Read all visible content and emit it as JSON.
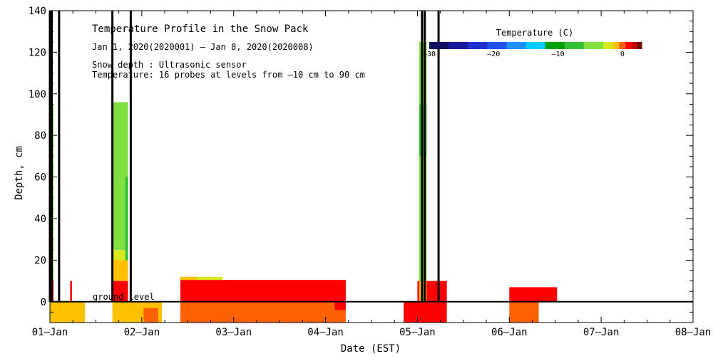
{
  "chart_data": {
    "type": "heatmap",
    "title": "Temperature Profile in the Snow Pack",
    "date_range_text": "Jan  1, 2020(2020001) – Jan  8, 2020(2020008)",
    "sensor_text": "Snow depth : Ultrasonic sensor",
    "probe_text": "Temperature: 16 probes at levels from –10 cm to 90 cm",
    "xlabel": "Date (EST)",
    "ylabel": "Depth, cm",
    "xlim": [
      0,
      7
    ],
    "ylim": [
      -10,
      140
    ],
    "x_ticks": [
      {
        "value": 0,
        "label": "01–Jan"
      },
      {
        "value": 1,
        "label": "02–Jan"
      },
      {
        "value": 2,
        "label": "03–Jan"
      },
      {
        "value": 3,
        "label": "04–Jan"
      },
      {
        "value": 4,
        "label": "05–Jan"
      },
      {
        "value": 5,
        "label": "06–Jan"
      },
      {
        "value": 6,
        "label": "07–Jan"
      },
      {
        "value": 7,
        "label": "08–Jan"
      }
    ],
    "y_ticks": [
      0,
      20,
      40,
      60,
      80,
      100,
      120,
      140
    ],
    "ground_level_label": "ground level",
    "colorbar": {
      "title": "Temperature (C)",
      "range": [
        -30,
        3
      ],
      "tick_labels": [
        {
          "value": -30,
          "label": "–30"
        },
        {
          "value": -20,
          "label": "–20"
        },
        {
          "value": -10,
          "label": "–10"
        },
        {
          "value": 0,
          "label": "0"
        }
      ],
      "bins": [
        {
          "from": -30,
          "to": -27,
          "color": "#101060"
        },
        {
          "from": -27,
          "to": -24,
          "color": "#1a1a9a"
        },
        {
          "from": -24,
          "to": -21,
          "color": "#2030d0"
        },
        {
          "from": -21,
          "to": -18,
          "color": "#2050f0"
        },
        {
          "from": -18,
          "to": -15,
          "color": "#1e90ff"
        },
        {
          "from": -15,
          "to": -12,
          "color": "#00ccff"
        },
        {
          "from": -12,
          "to": -9,
          "color": "#00a000"
        },
        {
          "from": -9,
          "to": -6,
          "color": "#30c030"
        },
        {
          "from": -6,
          "to": -3,
          "color": "#80e040"
        },
        {
          "from": -3,
          "to": -1.5,
          "color": "#d8e820"
        },
        {
          "from": -1.5,
          "to": -0.5,
          "color": "#ffc000"
        },
        {
          "from": -0.5,
          "to": 0.5,
          "color": "#ff6000"
        },
        {
          "from": 0.5,
          "to": 1.5,
          "color": "#ff0000"
        },
        {
          "from": 1.5,
          "to": 2.3,
          "color": "#c00000"
        },
        {
          "from": 2.3,
          "to": 3,
          "color": "#700000"
        }
      ]
    },
    "temperature_cells": [
      {
        "x0": 0.0,
        "x1": 0.04,
        "y0": -10,
        "y1": 0,
        "temp": -1.0
      },
      {
        "x0": 0.0,
        "x1": 0.04,
        "y0": 0,
        "y1": 10,
        "temp": 1.0
      },
      {
        "x0": 0.0,
        "x1": 0.04,
        "y0": 10,
        "y1": 95,
        "temp": -4.5
      },
      {
        "x0": 0.04,
        "x1": 0.38,
        "y0": -10,
        "y1": 0,
        "temp": -1.0
      },
      {
        "x0": 0.22,
        "x1": 0.24,
        "y0": 0,
        "y1": 10,
        "temp": 1.0
      },
      {
        "x0": 0.68,
        "x1": 1.22,
        "y0": -10,
        "y1": 0,
        "temp": -1.0
      },
      {
        "x0": 0.68,
        "x1": 0.85,
        "y0": 0,
        "y1": 10,
        "temp": 1.0
      },
      {
        "x0": 0.68,
        "x1": 0.85,
        "y0": 10,
        "y1": 20,
        "temp": -1.0
      },
      {
        "x0": 0.68,
        "x1": 0.85,
        "y0": 20,
        "y1": 25,
        "temp": -2.2
      },
      {
        "x0": 0.68,
        "x1": 0.85,
        "y0": 25,
        "y1": 96,
        "temp": -4.5
      },
      {
        "x0": 0.82,
        "x1": 0.85,
        "y0": 20,
        "y1": 60,
        "temp": -7.5
      },
      {
        "x0": 1.02,
        "x1": 1.18,
        "y0": -10,
        "y1": -3,
        "temp": 0.0
      },
      {
        "x0": 1.42,
        "x1": 3.22,
        "y0": -10,
        "y1": 0,
        "temp": 0.0
      },
      {
        "x0": 1.42,
        "x1": 3.22,
        "y0": 0,
        "y1": 10.5,
        "temp": 1.0
      },
      {
        "x0": 1.42,
        "x1": 1.6,
        "y0": 10.5,
        "y1": 12,
        "temp": -1.0
      },
      {
        "x0": 1.6,
        "x1": 1.88,
        "y0": 10.5,
        "y1": 12,
        "temp": -2.2
      },
      {
        "x0": 3.1,
        "x1": 3.22,
        "y0": -4,
        "y1": 0,
        "temp": 1.0
      },
      {
        "x0": 3.85,
        "x1": 4.32,
        "y0": -10,
        "y1": 0,
        "temp": 1.0
      },
      {
        "x0": 4.05,
        "x1": 4.12,
        "y0": 0,
        "y1": 4,
        "temp": 1.0
      },
      {
        "x0": 4.0,
        "x1": 4.32,
        "y0": 0,
        "y1": 10,
        "temp": 1.0
      },
      {
        "x0": 4.02,
        "x1": 4.1,
        "y0": 10,
        "y1": 70,
        "temp": -4.5
      },
      {
        "x0": 4.02,
        "x1": 4.1,
        "y0": 70,
        "y1": 95,
        "temp": -7.5
      },
      {
        "x0": 4.02,
        "x1": 4.1,
        "y0": 95,
        "y1": 125,
        "temp": -4.5
      },
      {
        "x0": 4.02,
        "x1": 4.1,
        "y0": 0,
        "y1": 10,
        "temp": -1.0
      },
      {
        "x0": 5.0,
        "x1": 5.32,
        "y0": -10,
        "y1": 0,
        "temp": 0.0
      },
      {
        "x0": 5.0,
        "x1": 5.52,
        "y0": 0,
        "y1": 7,
        "temp": 1.0
      }
    ],
    "probe_verticals": [
      0.0,
      0.02,
      0.1,
      0.68,
      0.88,
      4.05,
      4.08,
      4.23
    ]
  }
}
